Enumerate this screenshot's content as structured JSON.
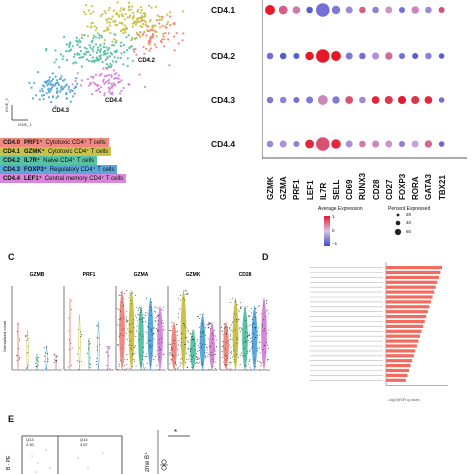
{
  "panelA": {
    "cluster_labels": [
      "CD4.2",
      "CD4.4",
      "CD4.3"
    ],
    "axis_x": "tSNE_1",
    "axis_y": "tSNE_2",
    "legend": [
      {
        "key": "CD4.0",
        "gene": "PRF1⁺",
        "desc": " Cytotoxic CD4⁺ T cells",
        "color": "#f08a80"
      },
      {
        "key": "CD4.1",
        "gene": "GZMK⁺",
        "desc": " Cytotoxic CD4⁺ T cells",
        "color": "#c9c24a"
      },
      {
        "key": "CD4.2",
        "gene": "IL7R⁺",
        "desc": " Naive CD4⁺ T cells",
        "color": "#58c2a4"
      },
      {
        "key": "CD4.3",
        "gene": "FOXP3⁺",
        "desc": " Regulatory CD4⁺ T cells",
        "color": "#5aa8d8"
      },
      {
        "key": "CD4.4",
        "gene": "LEF1⁺",
        "desc": " Central memory CD4⁺ T cells",
        "color": "#d887d8"
      }
    ]
  },
  "panelB": {
    "rows": [
      "CD4.1",
      "CD4.2",
      "CD4.3",
      "CD4.4"
    ],
    "genes": [
      "GZMK",
      "GZMA",
      "PRF1",
      "LEF1",
      "IL7R",
      "SELL",
      "CD69",
      "RUNX3",
      "CD28",
      "CD27",
      "FOXP3",
      "RORA",
      "GATA3",
      "TBX21"
    ],
    "legend_avg_title": "Average Expression",
    "legend_avg_ticks": [
      "1",
      "0",
      "−1"
    ],
    "legend_pct_title": "Percent Expressed",
    "legend_pct_ticks": [
      "20",
      "40",
      "60"
    ]
  },
  "panelC": {
    "letter": "C",
    "genes": [
      "GZMB",
      "PRF1",
      "GZMA",
      "GZMK",
      "CD28"
    ],
    "ylabel": "Normalized count"
  },
  "panelD": {
    "letter": "D",
    "xlabel": "-log10(FDR q-value)"
  },
  "panelE": {
    "letter": "E",
    "quad_q13": "Q13",
    "quad_q13_val": "2.40",
    "quad_q14": "Q14",
    "quad_q14_val": "3.67",
    "axis_y": "B - PE",
    "right_ylabel": "zme B⁺",
    "sig": "*"
  },
  "chart_data": {
    "type": "heatmap",
    "title": "",
    "rows": [
      "CD4.1",
      "CD4.2",
      "CD4.3",
      "CD4.4"
    ],
    "columns": [
      "GZMK",
      "GZMA",
      "PRF1",
      "LEF1",
      "IL7R",
      "SELL",
      "CD69",
      "RUNX3",
      "CD28",
      "CD27",
      "FOXP3",
      "RORA",
      "GATA3",
      "TBX21"
    ],
    "avg_expression": [
      [
        1,
        0.5,
        0.3,
        -0.8,
        -0.6,
        -0.5,
        -0.3,
        0.5,
        -0.4,
        0.1,
        -0.6,
        0.2,
        -0.3,
        0.6
      ],
      [
        -0.6,
        -0.8,
        -0.8,
        1,
        1,
        1,
        -0.5,
        -0.6,
        -0.2,
        0.4,
        -0.6,
        -0.8,
        -0.4,
        -0.8
      ],
      [
        -0.5,
        -0.4,
        -0.6,
        -0.5,
        0.2,
        -0.5,
        0.6,
        -0.3,
        0.9,
        0.8,
        1,
        0.8,
        0.9,
        -0.6
      ],
      [
        -0.3,
        -0.2,
        -0.4,
        0.9,
        0.6,
        0.9,
        -0.2,
        0.3,
        0.2,
        0.1,
        -0.4,
        0.0,
        0.4,
        -0.7
      ]
    ],
    "pct_expressed": [
      [
        30,
        22,
        15,
        10,
        65,
        20,
        12,
        10,
        10,
        12,
        8,
        15,
        10,
        8
      ],
      [
        10,
        10,
        8,
        20,
        65,
        30,
        12,
        10,
        12,
        14,
        8,
        8,
        10,
        6
      ],
      [
        10,
        10,
        8,
        12,
        30,
        14,
        16,
        10,
        16,
        18,
        18,
        18,
        16,
        6
      ],
      [
        10,
        12,
        8,
        22,
        65,
        28,
        12,
        10,
        12,
        12,
        8,
        12,
        14,
        6
      ]
    ],
    "color_range": [
      -1,
      1
    ],
    "size_ticks": [
      20,
      40,
      60
    ]
  }
}
